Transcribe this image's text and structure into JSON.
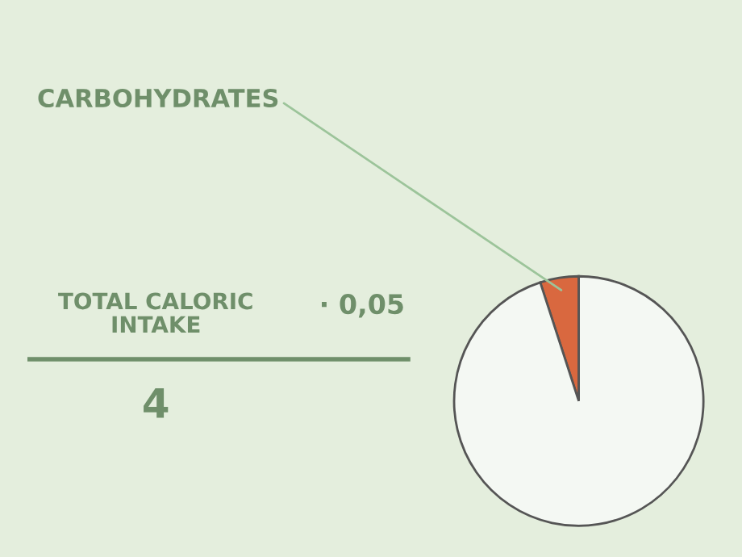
{
  "chart_data": {
    "type": "pie",
    "categories": [
      "CARBOHYDRATES",
      null
    ],
    "values": [
      5,
      95
    ],
    "colors": [
      "#d9683f",
      "#f4f8f3"
    ],
    "annotations": [
      "TOTAL CALORIC\nINTAKE",
      "· 0,05",
      "4"
    ]
  }
}
